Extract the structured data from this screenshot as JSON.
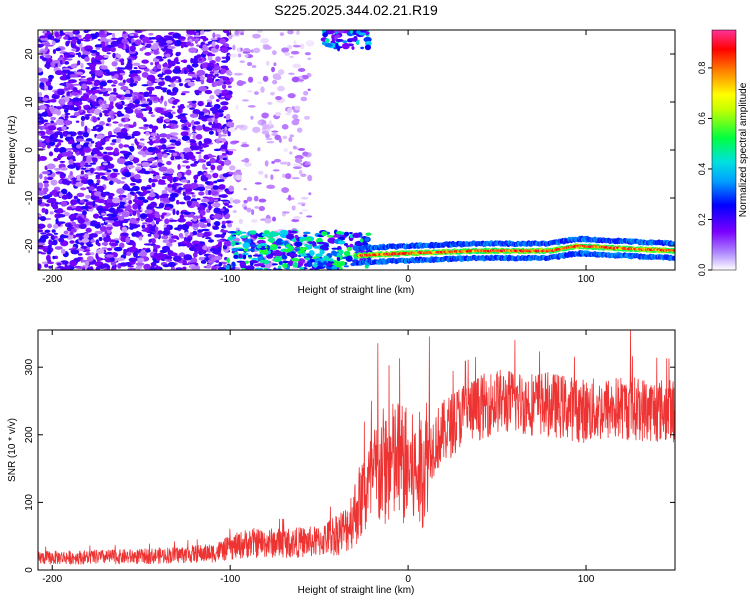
{
  "title": "S225.2025.344.02.21.R19",
  "chart_data": [
    {
      "type": "heatmap",
      "xlabel": "Height of straight line (km)",
      "ylabel": "Frequency (Hz)",
      "xlim": [
        -208,
        150
      ],
      "ylim": [
        -25,
        25
      ],
      "xticks": [
        -200,
        -100,
        0,
        100
      ],
      "yticks": [
        -20,
        -10,
        0,
        10,
        20
      ],
      "colorbar": {
        "label": "Normalized spectral amplitude",
        "range": [
          0,
          0.95
        ],
        "ticks": [
          "0.0",
          "0.2",
          "0.4",
          "0.6",
          "0.8"
        ],
        "tick_values": [
          0.0,
          0.2,
          0.4,
          0.6,
          0.8
        ],
        "colors": [
          "#ffffff",
          "#7a00ff",
          "#0000ff",
          "#00d0ff",
          "#00ff40",
          "#ffff00",
          "#ff8000",
          "#ff0000",
          "#ff3399"
        ]
      },
      "features": [
        {
          "name": "noise",
          "x_range": [
            -208,
            -100
          ],
          "y_range": [
            -25,
            25
          ],
          "level": 0.15
        },
        {
          "name": "sparse-noise",
          "x_range": [
            -100,
            -55
          ],
          "y_range": [
            -25,
            25
          ],
          "level": 0.05
        },
        {
          "name": "upper-patch",
          "x_range": [
            -50,
            -22
          ],
          "y_range": [
            21,
            25
          ],
          "level": 0.3
        },
        {
          "name": "lower-cluster",
          "x_range": [
            -102,
            -22
          ],
          "y_range": [
            -25,
            -17
          ],
          "level": 0.35
        },
        {
          "name": "signal-band",
          "x_range": [
            -30,
            150
          ],
          "y_center": -21,
          "level": 0.85
        }
      ],
      "signal_path": [
        {
          "x": -30,
          "y": -22
        },
        {
          "x": 0,
          "y": -21.5
        },
        {
          "x": 40,
          "y": -21
        },
        {
          "x": 80,
          "y": -21
        },
        {
          "x": 95,
          "y": -20
        },
        {
          "x": 120,
          "y": -20.5
        },
        {
          "x": 150,
          "y": -21
        }
      ]
    },
    {
      "type": "line",
      "xlabel": "Height of straight line (km)",
      "ylabel": "SNR (10 * v/v)",
      "xlim": [
        -208,
        150
      ],
      "ylim": [
        0,
        355
      ],
      "xticks": [
        -200,
        -100,
        0,
        100
      ],
      "yticks": [
        0,
        100,
        200,
        300
      ],
      "color": "#ee3333",
      "trend": [
        {
          "x": -208,
          "y": 18
        },
        {
          "x": -150,
          "y": 20
        },
        {
          "x": -110,
          "y": 25
        },
        {
          "x": -90,
          "y": 40
        },
        {
          "x": -70,
          "y": 40
        },
        {
          "x": -50,
          "y": 42
        },
        {
          "x": -35,
          "y": 60
        },
        {
          "x": -25,
          "y": 110
        },
        {
          "x": -15,
          "y": 150
        },
        {
          "x": -5,
          "y": 160
        },
        {
          "x": 5,
          "y": 140
        },
        {
          "x": 15,
          "y": 190
        },
        {
          "x": 30,
          "y": 230
        },
        {
          "x": 50,
          "y": 250
        },
        {
          "x": 80,
          "y": 245
        },
        {
          "x": 100,
          "y": 235
        },
        {
          "x": 120,
          "y": 240
        },
        {
          "x": 150,
          "y": 235
        }
      ],
      "peaks": [
        {
          "x": -17,
          "y": 335
        },
        {
          "x": 12,
          "y": 345
        },
        {
          "x": 125,
          "y": 355
        },
        {
          "x": 60,
          "y": 340
        }
      ]
    }
  ]
}
